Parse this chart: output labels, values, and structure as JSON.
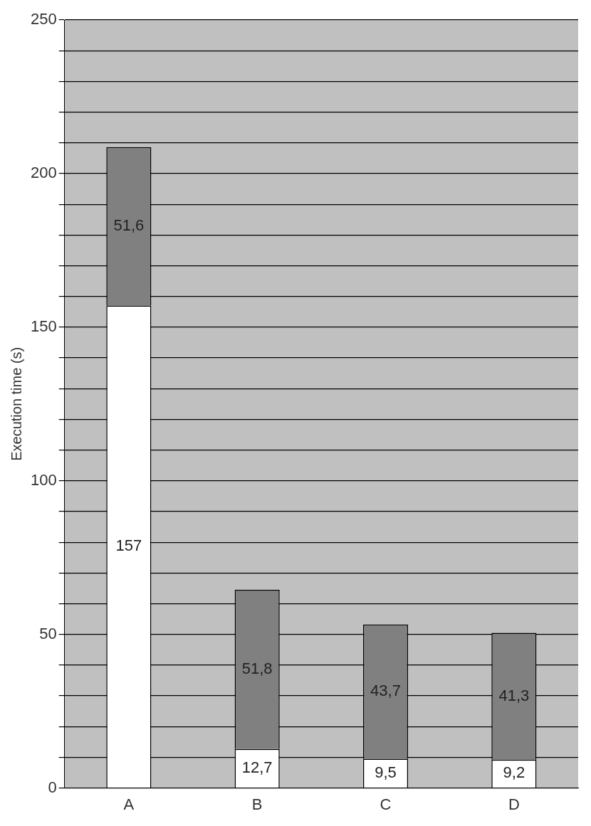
{
  "chart_data": {
    "type": "bar",
    "ylabel": "Execution time (s)",
    "categories": [
      "A",
      "B",
      "C",
      "D"
    ],
    "stacked": true,
    "series": [
      {
        "color": "#ffffff",
        "values": [
          157,
          12.7,
          9.5,
          9.2
        ],
        "value_labels": [
          "157",
          "12,7",
          "9,5",
          "9,2"
        ]
      },
      {
        "color": "#808080",
        "values": [
          51.6,
          51.8,
          43.7,
          41.3
        ],
        "value_labels": [
          "51,6",
          "51,8",
          "43,7",
          "41,3"
        ]
      }
    ],
    "ylim": [
      0,
      250
    ],
    "yticks": [
      0,
      {
        "value": 10,
        "label": null
      },
      {
        "value": 20,
        "label": null
      },
      {
        "value": 30,
        "label": null
      },
      {
        "value": 40,
        "label": null
      },
      50,
      {
        "value": 60,
        "label": null
      },
      {
        "value": 70,
        "label": null
      },
      {
        "value": 80,
        "label": null
      },
      {
        "value": 90,
        "label": null
      },
      100,
      {
        "value": 110,
        "label": null
      },
      {
        "value": 120,
        "label": null
      },
      {
        "value": 130,
        "label": null
      },
      {
        "value": 140,
        "label": null
      },
      150,
      {
        "value": 160,
        "label": null
      },
      {
        "value": 170,
        "label": null
      },
      {
        "value": 180,
        "label": null
      },
      {
        "value": 190,
        "label": null
      },
      200,
      {
        "value": 210,
        "label": null
      },
      {
        "value": 220,
        "label": null
      },
      {
        "value": 230,
        "label": null
      },
      {
        "value": 240,
        "label": null
      },
      250
    ],
    "grid": "y"
  }
}
